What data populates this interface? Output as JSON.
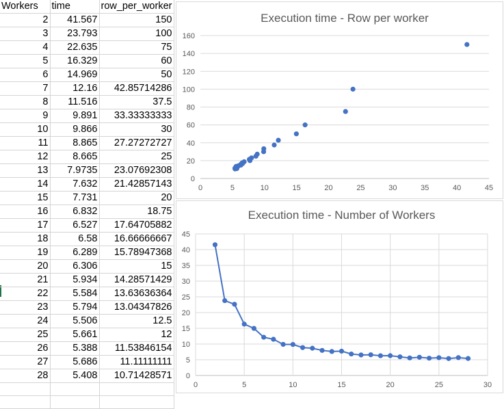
{
  "sheet": {
    "headers": [
      "Workers",
      "time",
      "row_per_worker"
    ],
    "rows": [
      [
        "2",
        "41.567",
        "150"
      ],
      [
        "3",
        "23.793",
        "100"
      ],
      [
        "4",
        "22.635",
        "75"
      ],
      [
        "5",
        "16.329",
        "60"
      ],
      [
        "6",
        "14.969",
        "50"
      ],
      [
        "7",
        "12.16",
        "42.85714286"
      ],
      [
        "8",
        "11.516",
        "37.5"
      ],
      [
        "9",
        "9.891",
        "33.33333333"
      ],
      [
        "10",
        "9.866",
        "30"
      ],
      [
        "11",
        "8.865",
        "27.27272727"
      ],
      [
        "12",
        "8.665",
        "25"
      ],
      [
        "13",
        "7.9735",
        "23.07692308"
      ],
      [
        "14",
        "7.632",
        "21.42857143"
      ],
      [
        "15",
        "7.731",
        "20"
      ],
      [
        "16",
        "6.832",
        "18.75"
      ],
      [
        "17",
        "6.527",
        "17.64705882"
      ],
      [
        "18",
        "6.58",
        "16.66666667"
      ],
      [
        "19",
        "6.289",
        "15.78947368"
      ],
      [
        "20",
        "6.306",
        "15"
      ],
      [
        "21",
        "5.934",
        "14.28571429"
      ],
      [
        "22",
        "5.584",
        "13.63636364"
      ],
      [
        "23",
        "5.794",
        "13.04347826"
      ],
      [
        "24",
        "5.506",
        "12.5"
      ],
      [
        "25",
        "5.661",
        "12"
      ],
      [
        "26",
        "5.388",
        "11.53846154"
      ],
      [
        "27",
        "5.686",
        "11.11111111"
      ],
      [
        "28",
        "5.408",
        "10.71428571"
      ]
    ]
  },
  "chart_data": [
    {
      "type": "scatter",
      "title": "Execution time - Row per worker",
      "xlabel": "",
      "ylabel": "",
      "xlim": [
        0,
        45
      ],
      "ylim": [
        0,
        160
      ],
      "xticks": [
        0,
        5,
        10,
        15,
        20,
        25,
        30,
        35,
        40,
        45
      ],
      "yticks": [
        0,
        20,
        40,
        60,
        80,
        100,
        120,
        140,
        160
      ],
      "grid": "horizontal",
      "color": "#4472c4",
      "x": [
        41.567,
        23.793,
        22.635,
        16.329,
        14.969,
        12.16,
        11.516,
        9.891,
        9.866,
        8.865,
        8.665,
        7.9735,
        7.632,
        7.731,
        6.832,
        6.527,
        6.58,
        6.289,
        6.306,
        5.934,
        5.584,
        5.794,
        5.506,
        5.661,
        5.388,
        5.686,
        5.408
      ],
      "y": [
        150,
        100,
        75,
        60,
        50,
        42.85714286,
        37.5,
        33.33333333,
        30,
        27.27272727,
        25,
        23.07692308,
        21.42857143,
        20,
        18.75,
        17.64705882,
        16.66666667,
        15.78947368,
        15,
        14.28571429,
        13.63636364,
        13.04347826,
        12.5,
        12,
        11.53846154,
        11.11111111,
        10.71428571
      ]
    },
    {
      "type": "line",
      "title": "Execution time - Number of Workers",
      "xlabel": "",
      "ylabel": "",
      "xlim": [
        0,
        30
      ],
      "ylim": [
        0,
        45
      ],
      "xticks": [
        0,
        5,
        10,
        15,
        20,
        25,
        30
      ],
      "yticks": [
        0,
        5,
        10,
        15,
        20,
        25,
        30,
        35,
        40,
        45
      ],
      "grid": "both",
      "color": "#4472c4",
      "x": [
        2,
        3,
        4,
        5,
        6,
        7,
        8,
        9,
        10,
        11,
        12,
        13,
        14,
        15,
        16,
        17,
        18,
        19,
        20,
        21,
        22,
        23,
        24,
        25,
        26,
        27,
        28
      ],
      "y": [
        41.567,
        23.793,
        22.635,
        16.329,
        14.969,
        12.16,
        11.516,
        9.891,
        9.866,
        8.865,
        8.665,
        7.9735,
        7.632,
        7.731,
        6.832,
        6.527,
        6.58,
        6.289,
        6.306,
        5.934,
        5.584,
        5.794,
        5.506,
        5.661,
        5.388,
        5.686,
        5.408
      ]
    }
  ]
}
